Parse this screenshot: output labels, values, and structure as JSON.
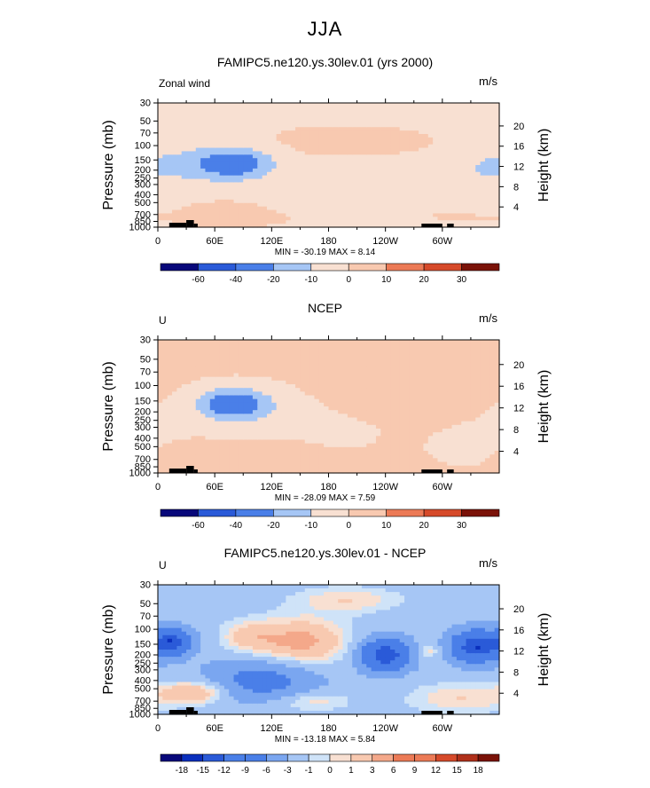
{
  "main_title": "JJA",
  "colors": {
    "scale": [
      "#08087a",
      "#0a2fbd",
      "#2a5ad8",
      "#4a7fe8",
      "#7aa6f0",
      "#a6c6f5",
      "#cfe3f8",
      "#f8e0d2",
      "#f8c9b0",
      "#f4a88a",
      "#ec7a56",
      "#d64a2a",
      "#b0301a",
      "#7a1208"
    ],
    "mark": "#000000"
  },
  "chart_data": [
    {
      "type": "heatmap",
      "title": "FAMIPC5.ne120.ys.30lev.01 (yrs 2000)",
      "left_label": "Zonal wind",
      "units": "m/s",
      "ylabel": "Pressure (mb)",
      "y2label": "Height (km)",
      "stats": "MIN = -30.19  MAX =   8.14",
      "min": -30.19,
      "max": 8.14,
      "x_ticks": [
        "0",
        "60E",
        "120E",
        "180",
        "120W",
        "60W"
      ],
      "x_tick_lons": [
        0,
        60,
        120,
        180,
        240,
        300
      ],
      "xlim": [
        0,
        360
      ],
      "p_ticks": [
        "30",
        "50",
        "70",
        "100",
        "150",
        "200",
        "250",
        "300",
        "400",
        "500",
        "700",
        "850",
        "1000"
      ],
      "p_values": [
        30,
        50,
        70,
        100,
        150,
        200,
        250,
        300,
        400,
        500,
        700,
        850,
        1000
      ],
      "h_ticks": [
        "20",
        "16",
        "12",
        "8",
        "4"
      ],
      "h_values": [
        20,
        16,
        12,
        8,
        4
      ],
      "colorbar_labels": [
        "-60",
        "-40",
        "-20",
        "-10",
        "0",
        "10",
        "20",
        "30"
      ],
      "field": {
        "base": -3,
        "blobs": [
          {
            "lon": 80,
            "p": 165,
            "v": -28,
            "slon": 28,
            "sp": 0.3
          },
          {
            "lon": 25,
            "p": 170,
            "v": -6,
            "slon": 30,
            "sp": 0.45
          },
          {
            "lon": 345,
            "p": 185,
            "v": -6,
            "slon": 22,
            "sp": 0.35
          },
          {
            "lon": 235,
            "p": 200,
            "v": -6,
            "slon": 40,
            "sp": 0.2
          },
          {
            "lon": 200,
            "p": 90,
            "v": 5,
            "slon": 90,
            "sp": 0.45
          },
          {
            "lon": 70,
            "p": 650,
            "v": 8,
            "slon": 28,
            "sp": 0.22
          },
          {
            "lon": 90,
            "p": 800,
            "v": 4,
            "slon": 55,
            "sp": 0.2
          },
          {
            "lon": 310,
            "p": 750,
            "v": 3,
            "slon": 50,
            "sp": 0.25
          },
          {
            "lon": 250,
            "p": 450,
            "v": 2,
            "slon": 40,
            "sp": 0.25
          }
        ]
      }
    },
    {
      "type": "heatmap",
      "title": "NCEP",
      "left_label": "U",
      "units": "m/s",
      "ylabel": "Pressure (mb)",
      "y2label": "Height (km)",
      "stats": "MIN = -28.09  MAX =   7.59",
      "min": -28.09,
      "max": 7.59,
      "x_ticks": [
        "0",
        "60E",
        "120E",
        "180",
        "120W",
        "60W"
      ],
      "x_tick_lons": [
        0,
        60,
        120,
        180,
        240,
        300
      ],
      "xlim": [
        0,
        360
      ],
      "p_ticks": [
        "30",
        "50",
        "70",
        "100",
        "150",
        "200",
        "250",
        "300",
        "400",
        "500",
        "700",
        "850",
        "1000"
      ],
      "p_values": [
        30,
        50,
        70,
        100,
        150,
        200,
        250,
        300,
        400,
        500,
        700,
        850,
        1000
      ],
      "h_ticks": [
        "20",
        "16",
        "12",
        "8",
        "4"
      ],
      "h_values": [
        20,
        16,
        12,
        8,
        4
      ],
      "colorbar_labels": [
        "-60",
        "-40",
        "-20",
        "-10",
        "0",
        "10",
        "20",
        "30"
      ],
      "field": {
        "base": 1,
        "blobs": [
          {
            "lon": 80,
            "p": 160,
            "v": -28,
            "slon": 26,
            "sp": 0.28
          },
          {
            "lon": 95,
            "p": 210,
            "v": -6,
            "slon": 55,
            "sp": 0.4
          },
          {
            "lon": 200,
            "p": 280,
            "v": -2,
            "slon": 30,
            "sp": 0.5
          },
          {
            "lon": 270,
            "p": 110,
            "v": 7,
            "slon": 45,
            "sp": 0.25
          },
          {
            "lon": 225,
            "p": 160,
            "v": 4,
            "slon": 35,
            "sp": 0.3
          },
          {
            "lon": 60,
            "p": 650,
            "v": 4,
            "slon": 35,
            "sp": 0.25
          },
          {
            "lon": 330,
            "p": 500,
            "v": -2,
            "slon": 40,
            "sp": 0.45
          }
        ]
      }
    },
    {
      "type": "heatmap",
      "title": "FAMIPC5.ne120.ys.30lev.01 - NCEP",
      "left_label": "U",
      "units": "m/s",
      "ylabel": "Pressure (mb)",
      "y2label": "Height (km)",
      "stats": "MIN = -13.18  MAX =   5.84",
      "min": -13.18,
      "max": 5.84,
      "x_ticks": [
        "0",
        "60E",
        "120E",
        "180",
        "120W",
        "60W"
      ],
      "x_tick_lons": [
        0,
        60,
        120,
        180,
        240,
        300
      ],
      "xlim": [
        0,
        360
      ],
      "p_ticks": [
        "30",
        "50",
        "70",
        "100",
        "150",
        "200",
        "250",
        "300",
        "400",
        "500",
        "700",
        "850",
        "1000"
      ],
      "p_values": [
        30,
        50,
        70,
        100,
        150,
        200,
        250,
        300,
        400,
        500,
        700,
        850,
        1000
      ],
      "h_ticks": [
        "20",
        "16",
        "12",
        "8",
        "4"
      ],
      "h_values": [
        20,
        16,
        12,
        8,
        4
      ],
      "colorbar_labels": [
        "-18",
        "-15",
        "-12",
        "-9",
        "-6",
        "-3",
        "-1",
        "0",
        "1",
        "3",
        "6",
        "9",
        "12",
        "15",
        "18"
      ],
      "field": {
        "base": -2,
        "blobs": [
          {
            "lon": 15,
            "p": 140,
            "v": -12,
            "slon": 14,
            "sp": 0.25
          },
          {
            "lon": 240,
            "p": 200,
            "v": -13,
            "slon": 18,
            "sp": 0.3
          },
          {
            "lon": 335,
            "p": 160,
            "v": -13,
            "slon": 18,
            "sp": 0.3
          },
          {
            "lon": 150,
            "p": 140,
            "v": 5.8,
            "slon": 35,
            "sp": 0.45
          },
          {
            "lon": 95,
            "p": 120,
            "v": 3,
            "slon": 20,
            "sp": 0.3
          },
          {
            "lon": 40,
            "p": 550,
            "v": 5,
            "slon": 25,
            "sp": 0.22
          },
          {
            "lon": 320,
            "p": 650,
            "v": 3,
            "slon": 40,
            "sp": 0.3
          },
          {
            "lon": 160,
            "p": 700,
            "v": 3,
            "slon": 30,
            "sp": 0.2
          },
          {
            "lon": 285,
            "p": 180,
            "v": 3,
            "slon": 8,
            "sp": 0.15
          },
          {
            "lon": 200,
            "p": 45,
            "v": 3,
            "slon": 40,
            "sp": 0.25
          },
          {
            "lon": 110,
            "p": 400,
            "v": -6,
            "slon": 40,
            "sp": 0.4
          }
        ]
      }
    }
  ]
}
